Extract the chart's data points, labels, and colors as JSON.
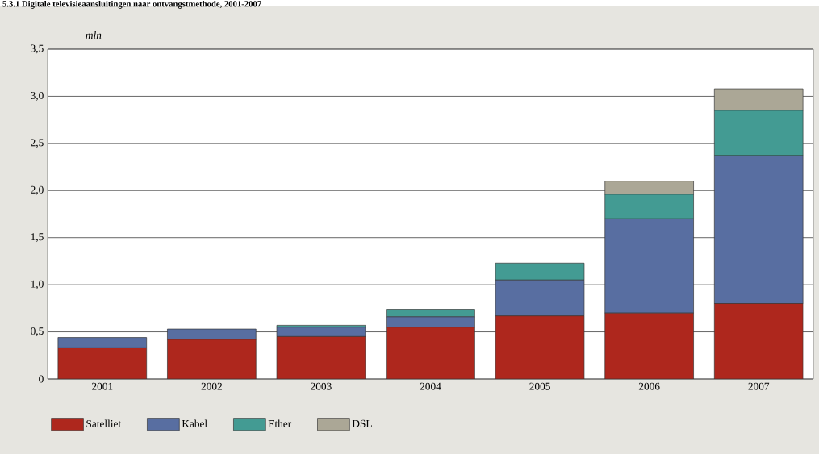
{
  "chart_data": {
    "type": "bar",
    "stacked": true,
    "title": "5.3.1 Digitale televisieaansluitingen naar ontvangstmethode, 2001-2007",
    "ylabel": "mln",
    "categories": [
      "2001",
      "2002",
      "2003",
      "2004",
      "2005",
      "2006",
      "2007"
    ],
    "series": [
      {
        "name": "Satelliet",
        "color": "#ae271d",
        "values": [
          0.33,
          0.42,
          0.45,
          0.55,
          0.67,
          0.7,
          0.8
        ]
      },
      {
        "name": "Kabel",
        "color": "#586ea1",
        "values": [
          0.11,
          0.11,
          0.1,
          0.11,
          0.38,
          1.0,
          1.57
        ]
      },
      {
        "name": "Ether",
        "color": "#439b93",
        "values": [
          null,
          null,
          0.02,
          0.08,
          0.18,
          0.26,
          0.48
        ]
      },
      {
        "name": "DSL",
        "color": "#aba796",
        "values": [
          null,
          null,
          null,
          null,
          null,
          0.14,
          0.23
        ]
      }
    ],
    "ylim": [
      0,
      3.5
    ],
    "yticks": [
      0,
      {
        "value": 0.5,
        "label": "0,5"
      },
      {
        "value": 1.0,
        "label": "1,0"
      },
      {
        "value": 1.5,
        "label": "1,5"
      },
      {
        "value": 2.0,
        "label": "2,0"
      },
      {
        "value": 2.5,
        "label": "2,5"
      },
      {
        "value": 3.0,
        "label": "3,0"
      },
      {
        "value": 3.5,
        "label": "3,5"
      }
    ],
    "grid": "y",
    "legend": "bottom left"
  }
}
